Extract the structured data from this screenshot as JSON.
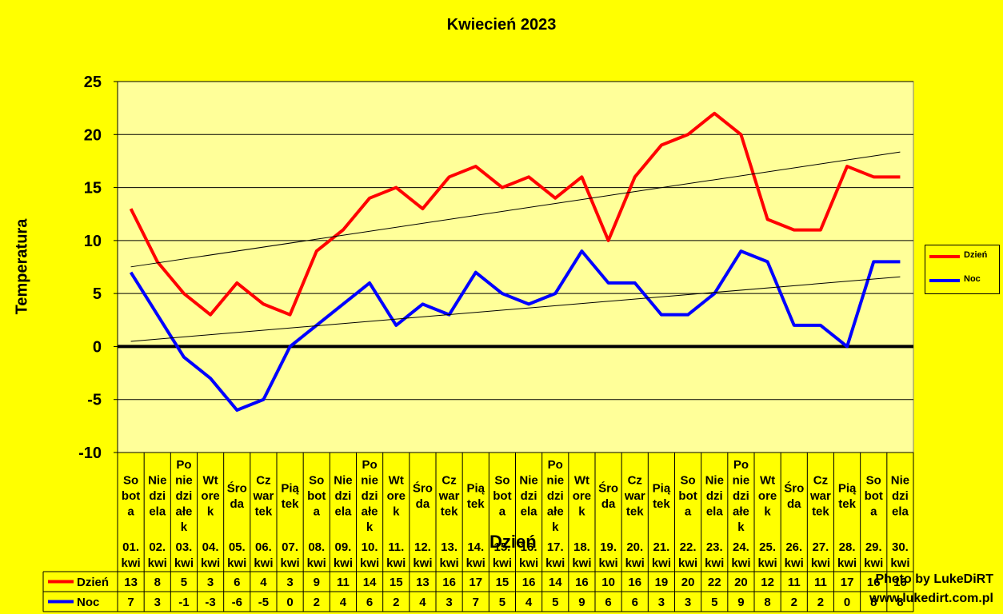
{
  "chart_data": {
    "type": "line",
    "title": "Kwiecień 2023",
    "ylabel": "Temperatura",
    "xlabel": "Dzień",
    "ylim": [
      -10,
      25
    ],
    "yticks": [
      25,
      20,
      15,
      10,
      5,
      0,
      -5,
      -10
    ],
    "grid": true,
    "legend_position": "right",
    "trendlines": true,
    "categories": [
      {
        "day": "Sobota",
        "date": "01. kwi"
      },
      {
        "day": "Niedziela",
        "date": "02. kwi"
      },
      {
        "day": "Poniedziałek",
        "date": "03. kwi"
      },
      {
        "day": "Wtorek",
        "date": "04. kwi"
      },
      {
        "day": "Środa",
        "date": "05. kwi"
      },
      {
        "day": "Czwartek",
        "date": "06. kwi"
      },
      {
        "day": "Piątek",
        "date": "07. kwi"
      },
      {
        "day": "Sobota",
        "date": "08. kwi"
      },
      {
        "day": "Niedziela",
        "date": "09. kwi"
      },
      {
        "day": "Poniedziałek",
        "date": "10. kwi"
      },
      {
        "day": "Wtorek",
        "date": "11. kwi"
      },
      {
        "day": "Środa",
        "date": "12. kwi"
      },
      {
        "day": "Czwartek",
        "date": "13. kwi"
      },
      {
        "day": "Piątek",
        "date": "14. kwi"
      },
      {
        "day": "Sobota",
        "date": "15. kwi"
      },
      {
        "day": "Niedziela",
        "date": "16. kwi"
      },
      {
        "day": "Poniedziałek",
        "date": "17. kwi"
      },
      {
        "day": "Wtorek",
        "date": "18. kwi"
      },
      {
        "day": "Środa",
        "date": "19. kwi"
      },
      {
        "day": "Czwartek",
        "date": "20. kwi"
      },
      {
        "day": "Piątek",
        "date": "21. kwi"
      },
      {
        "day": "Sobota",
        "date": "22. kwi"
      },
      {
        "day": "Niedziela",
        "date": "23. kwi"
      },
      {
        "day": "Poniedziałek",
        "date": "24. kwi"
      },
      {
        "day": "Wtorek",
        "date": "25. kwi"
      },
      {
        "day": "Środa",
        "date": "26. kwi"
      },
      {
        "day": "Czwartek",
        "date": "27. kwi"
      },
      {
        "day": "Piątek",
        "date": "28. kwi"
      },
      {
        "day": "Sobota",
        "date": "29. kwi"
      },
      {
        "day": "Niedziela",
        "date": "30. kwi"
      }
    ],
    "series": [
      {
        "name": "Dzień",
        "color": "#ff0000",
        "values": [
          13,
          8,
          5,
          3,
          6,
          4,
          3,
          9,
          11,
          14,
          15,
          13,
          16,
          17,
          15,
          16,
          14,
          16,
          10,
          16,
          19,
          20,
          22,
          20,
          12,
          11,
          11,
          17,
          16,
          16
        ]
      },
      {
        "name": "Noc",
        "color": "#0000ff",
        "values": [
          7,
          3,
          -1,
          -3,
          -6,
          -5,
          0,
          2,
          4,
          6,
          2,
          4,
          3,
          7,
          5,
          4,
          5,
          9,
          6,
          6,
          3,
          3,
          5,
          9,
          8,
          2,
          2,
          0,
          8,
          8
        ]
      }
    ]
  },
  "watermark": {
    "line1": "Photo by LukeDiRT",
    "line2": "www.lukedirt.com.pl"
  }
}
